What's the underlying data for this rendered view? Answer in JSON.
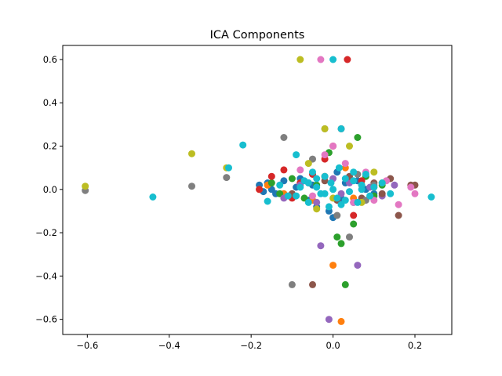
{
  "chart_data": {
    "type": "scatter",
    "title": "ICA Components",
    "xlabel": "",
    "ylabel": "",
    "xlim": [
      -0.66,
      0.29
    ],
    "ylim": [
      -0.67,
      0.665
    ],
    "xticks": [
      -0.6,
      -0.4,
      -0.2,
      0.0,
      0.2
    ],
    "xtick_labels": [
      "−0.6",
      "−0.4",
      "−0.2",
      "0.0",
      "0.2"
    ],
    "yticks": [
      -0.6,
      -0.4,
      -0.2,
      0.0,
      0.2,
      0.4,
      0.6
    ],
    "ytick_labels": [
      "−0.6",
      "−0.4",
      "−0.2",
      "0.0",
      "0.2",
      "0.4",
      "0.6"
    ],
    "grid": false,
    "legend": "none",
    "series": [
      {
        "color": "#1f77b4",
        "x": [
          -0.18,
          -0.17,
          -0.16,
          -0.15,
          -0.14,
          -0.12,
          -0.1,
          -0.09,
          -0.08,
          -0.06,
          -0.05,
          -0.04,
          -0.02,
          -0.01,
          0.0,
          0.01,
          0.02,
          0.03,
          0.05,
          0.06,
          0.08,
          0.1
        ],
        "y": [
          0.02,
          -0.01,
          0.03,
          0.0,
          -0.02,
          0.04,
          -0.03,
          0.01,
          0.05,
          -0.05,
          0.02,
          -0.08,
          0.06,
          -0.1,
          -0.13,
          0.08,
          -0.04,
          0.03,
          -0.06,
          0.04,
          0.0,
          -0.02
        ]
      },
      {
        "color": "#ff7f0e",
        "x": [
          -0.18,
          -0.16,
          -0.12,
          -0.08,
          -0.05,
          -0.02,
          0.0,
          0.02,
          0.03,
          0.05,
          0.07,
          0.1
        ],
        "y": [
          0.0,
          0.02,
          -0.02,
          0.03,
          -0.05,
          0.06,
          -0.35,
          -0.61,
          0.1,
          -0.04,
          0.02,
          0.01
        ]
      },
      {
        "color": "#2ca02c",
        "x": [
          -0.15,
          -0.13,
          -0.1,
          -0.07,
          -0.04,
          -0.01,
          0.01,
          0.02,
          0.03,
          0.05,
          0.06,
          0.08,
          0.1,
          0.12
        ],
        "y": [
          0.03,
          -0.02,
          0.05,
          -0.04,
          0.02,
          0.17,
          -0.22,
          -0.25,
          -0.44,
          -0.16,
          0.24,
          0.06,
          -0.03,
          0.02
        ]
      },
      {
        "color": "#d62728",
        "x": [
          -0.18,
          -0.15,
          -0.12,
          -0.1,
          -0.08,
          -0.05,
          -0.02,
          0.0,
          0.02,
          0.035,
          0.05,
          0.07
        ],
        "y": [
          0.0,
          0.06,
          0.09,
          -0.04,
          0.03,
          0.07,
          0.14,
          0.2,
          0.28,
          0.6,
          -0.12,
          0.04
        ]
      },
      {
        "color": "#9467bd",
        "x": [
          -0.12,
          -0.08,
          -0.04,
          -0.03,
          -0.01,
          0.0,
          0.02,
          0.04,
          0.06,
          0.09,
          0.12,
          0.15
        ],
        "y": [
          -0.04,
          0.02,
          -0.06,
          -0.26,
          -0.6,
          0.05,
          -0.02,
          0.03,
          -0.35,
          0.01,
          -0.03,
          0.02
        ]
      },
      {
        "color": "#8c564b",
        "x": [
          -0.1,
          -0.06,
          -0.05,
          -0.02,
          0.01,
          0.04,
          0.07,
          0.1,
          0.12,
          0.14,
          0.16,
          0.19,
          0.2
        ],
        "y": [
          -0.02,
          0.03,
          -0.44,
          0.04,
          -0.05,
          0.06,
          -0.04,
          0.03,
          -0.02,
          0.05,
          -0.12,
          0.02,
          0.02
        ]
      },
      {
        "color": "#e377c2",
        "x": [
          -0.08,
          -0.05,
          -0.03,
          -0.02,
          0.0,
          0.03,
          0.05,
          0.08,
          0.1,
          0.13,
          0.16,
          0.19,
          0.2
        ],
        "y": [
          0.09,
          -0.03,
          0.6,
          0.16,
          0.2,
          0.12,
          -0.06,
          0.08,
          -0.05,
          0.04,
          -0.07,
          0.01,
          -0.02
        ]
      },
      {
        "color": "#7f7f7f",
        "x": [
          -0.605,
          -0.345,
          -0.26,
          -0.12,
          -0.1,
          -0.05,
          -0.02,
          0.01,
          0.04,
          0.06,
          0.08,
          0.1
        ],
        "y": [
          -0.005,
          0.015,
          0.055,
          0.24,
          -0.44,
          0.14,
          0.28,
          -0.12,
          -0.22,
          0.07,
          -0.05,
          0.02
        ]
      },
      {
        "color": "#bcbd22",
        "x": [
          -0.605,
          -0.345,
          -0.26,
          -0.08,
          -0.06,
          -0.04,
          -0.02,
          0.0,
          0.04,
          0.07,
          0.1,
          0.12
        ],
        "y": [
          0.015,
          0.165,
          0.1,
          0.6,
          0.12,
          -0.09,
          0.28,
          -0.04,
          0.2,
          -0.06,
          0.08,
          0.03
        ]
      },
      {
        "color": "#17becf",
        "x": [
          -0.44,
          -0.255,
          -0.22,
          -0.16,
          -0.13,
          -0.11,
          -0.09,
          -0.07,
          -0.06,
          -0.05,
          -0.04,
          -0.03,
          -0.02,
          -0.01,
          -0.005,
          0.0,
          0.01,
          0.015,
          0.02,
          0.03,
          0.04,
          0.05,
          0.06,
          0.07,
          0.08,
          0.09,
          0.1,
          0.12,
          0.14,
          0.24,
          -0.09,
          -0.06,
          0.0,
          0.03,
          -0.04,
          0.05,
          0.02,
          -0.08,
          0.07,
          -0.02
        ],
        "y": [
          -0.035,
          0.1,
          0.205,
          -0.055,
          0.02,
          -0.03,
          0.16,
          0.04,
          -0.06,
          0.08,
          0.01,
          -0.02,
          0.06,
          -0.08,
          0.03,
          0.6,
          -0.04,
          0.1,
          0.28,
          0.05,
          -0.01,
          0.04,
          -0.06,
          0.02,
          0.07,
          -0.03,
          0.01,
          0.03,
          -0.02,
          -0.035,
          -0.03,
          0.03,
          0.0,
          -0.05,
          0.05,
          0.08,
          -0.07,
          0.01,
          0.0,
          -0.02
        ]
      }
    ]
  }
}
